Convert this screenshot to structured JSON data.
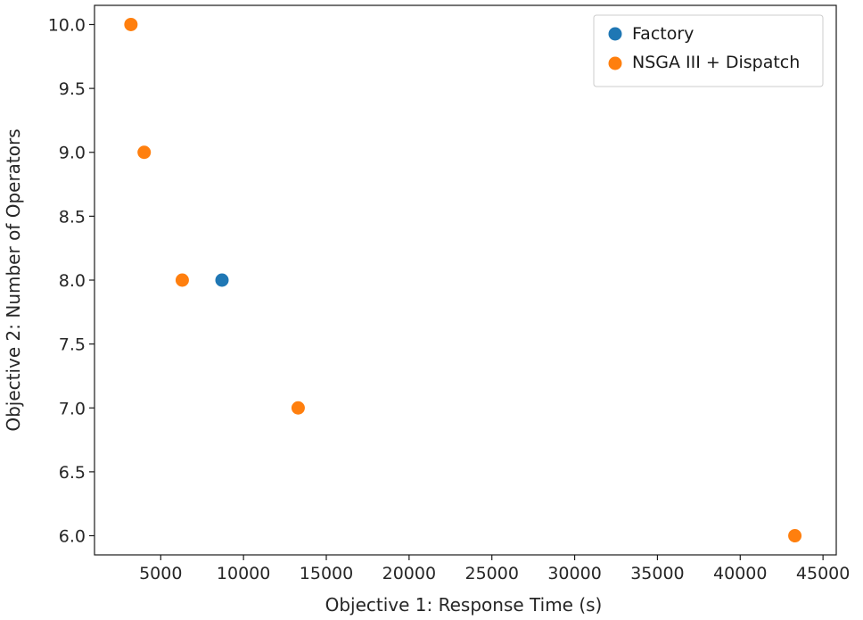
{
  "chart_data": {
    "type": "scatter",
    "xlabel": "Objective 1: Response Time (s)",
    "ylabel": "Objective 2: Number of Operators",
    "xlim": [
      1000,
      45800
    ],
    "ylim": [
      5.85,
      10.15
    ],
    "x_ticks": [
      5000,
      10000,
      15000,
      20000,
      25000,
      30000,
      35000,
      40000,
      45000
    ],
    "y_ticks": [
      6.0,
      6.5,
      7.0,
      7.5,
      8.0,
      8.5,
      9.0,
      9.5,
      10.0
    ],
    "x_tick_labels": [
      "5000",
      "10000",
      "15000",
      "20000",
      "25000",
      "30000",
      "35000",
      "40000",
      "45000"
    ],
    "y_tick_labels": [
      "6.0",
      "6.5",
      "7.0",
      "7.5",
      "8.0",
      "8.5",
      "9.0",
      "9.5",
      "10.0"
    ],
    "grid": false,
    "legend_position": "top-right",
    "series": [
      {
        "name": "Factory",
        "color": "#1f77b4",
        "points": [
          {
            "x": 8700,
            "y": 8
          }
        ]
      },
      {
        "name": "NSGA III + Dispatch",
        "color": "#ff7f0e",
        "points": [
          {
            "x": 3200,
            "y": 10
          },
          {
            "x": 4000,
            "y": 9
          },
          {
            "x": 6300,
            "y": 8
          },
          {
            "x": 13300,
            "y": 7
          },
          {
            "x": 43300,
            "y": 6
          }
        ]
      }
    ]
  }
}
